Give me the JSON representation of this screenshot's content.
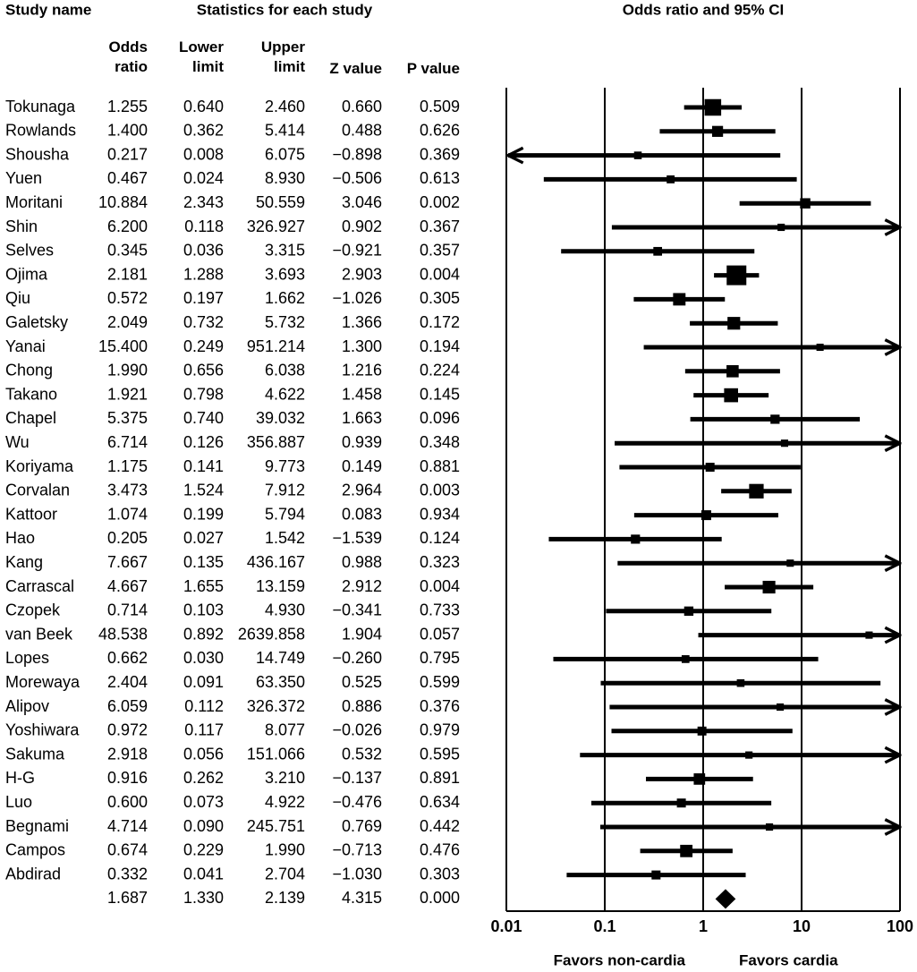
{
  "chart_data": {
    "type": "forest",
    "study_header": "Study name",
    "stats_header": "Statistics for each study",
    "title": "Odds ratio and 95% CI",
    "studies": [
      "Tokunaga",
      "Rowlands",
      "Shousha",
      "Yuen",
      "Moritani",
      "Shin",
      "Selves",
      "Ojima",
      "Qiu",
      "Galetsky",
      "Yanai",
      "Chong",
      "Takano",
      "Chapel",
      "Wu",
      "Koriyama",
      "Corvalan",
      "Kattoor",
      "Hao",
      "Kang",
      "Carrascal",
      "Czopek",
      "van Beek",
      "Lopes",
      "Morewaya",
      "Alipov",
      "Yoshiwara",
      "Sakuma",
      "H-G",
      "Luo",
      "Begnami",
      "Campos",
      "Abdirad",
      null
    ],
    "columns": [
      {
        "name": "Odds ratio",
        "values": [
          1.255,
          1.4,
          0.217,
          0.467,
          10.884,
          6.2,
          0.345,
          2.181,
          0.572,
          2.049,
          15.4,
          1.99,
          1.921,
          5.375,
          6.714,
          1.175,
          3.473,
          1.074,
          0.205,
          7.667,
          4.667,
          0.714,
          48.538,
          0.662,
          2.404,
          6.059,
          0.972,
          2.918,
          0.916,
          0.6,
          4.714,
          0.674,
          0.332,
          1.687
        ],
        "value_labels": [
          "1.255",
          "1.400",
          "0.217",
          "0.467",
          "10.884",
          "6.200",
          "0.345",
          "2.181",
          "0.572",
          "2.049",
          "15.400",
          "1.990",
          "1.921",
          "5.375",
          "6.714",
          "1.175",
          "3.473",
          "1.074",
          "0.205",
          "7.667",
          "4.667",
          "0.714",
          "48.538",
          "0.662",
          "2.404",
          "6.059",
          "0.972",
          "2.918",
          "0.916",
          "0.600",
          "4.714",
          "0.674",
          "0.332",
          "1.687"
        ]
      },
      {
        "name": "Lower limit",
        "values": [
          0.64,
          0.362,
          0.008,
          0.024,
          2.343,
          0.118,
          0.036,
          1.288,
          0.197,
          0.732,
          0.249,
          0.656,
          0.798,
          0.74,
          0.126,
          0.141,
          1.524,
          0.199,
          0.027,
          0.135,
          1.655,
          0.103,
          0.892,
          0.03,
          0.091,
          0.112,
          0.117,
          0.056,
          0.262,
          0.073,
          0.09,
          0.229,
          0.041,
          1.33
        ],
        "value_labels": [
          "0.640",
          "0.362",
          "0.008",
          "0.024",
          "2.343",
          "0.118",
          "0.036",
          "1.288",
          "0.197",
          "0.732",
          "0.249",
          "0.656",
          "0.798",
          "0.740",
          "0.126",
          "0.141",
          "1.524",
          "0.199",
          "0.027",
          "0.135",
          "1.655",
          "0.103",
          "0.892",
          "0.030",
          "0.091",
          "0.112",
          "0.117",
          "0.056",
          "0.262",
          "0.073",
          "0.090",
          "0.229",
          "0.041",
          "1.330"
        ]
      },
      {
        "name": "Upper limit",
        "values": [
          2.46,
          5.414,
          6.075,
          8.93,
          50.559,
          326.927,
          3.315,
          3.693,
          1.662,
          5.732,
          951.214,
          6.038,
          4.622,
          39.032,
          356.887,
          9.773,
          7.912,
          5.794,
          1.542,
          436.167,
          13.159,
          4.93,
          2639.858,
          14.749,
          63.35,
          326.372,
          8.077,
          151.066,
          3.21,
          4.922,
          245.751,
          1.99,
          2.704,
          2.139
        ],
        "value_labels": [
          "2.460",
          "5.414",
          "6.075",
          "8.930",
          "50.559",
          "326.927",
          "3.315",
          "3.693",
          "1.662",
          "5.732",
          "951.214",
          "6.038",
          "4.622",
          "39.032",
          "356.887",
          "9.773",
          "7.912",
          "5.794",
          "1.542",
          "436.167",
          "13.159",
          "4.930",
          "2639.858",
          "14.749",
          "63.350",
          "326.372",
          "8.077",
          "151.066",
          "3.210",
          "4.922",
          "245.751",
          "1.990",
          "2.704",
          "2.139"
        ]
      },
      {
        "name": "Z value",
        "values": [
          0.66,
          0.488,
          -0.898,
          -0.506,
          3.046,
          0.902,
          -0.921,
          2.903,
          -1.026,
          1.366,
          1.3,
          1.216,
          1.458,
          1.663,
          0.939,
          0.149,
          2.964,
          0.083,
          -1.539,
          0.988,
          2.912,
          -0.341,
          1.904,
          -0.26,
          0.525,
          0.886,
          -0.026,
          0.532,
          -0.137,
          -0.476,
          0.769,
          -0.713,
          -1.03,
          4.315
        ],
        "value_labels": [
          "0.660",
          "0.488",
          "−0.898",
          "−0.506",
          "3.046",
          "0.902",
          "−0.921",
          "2.903",
          "−1.026",
          "1.366",
          "1.300",
          "1.216",
          "1.458",
          "1.663",
          "0.939",
          "0.149",
          "2.964",
          "0.083",
          "−1.539",
          "0.988",
          "2.912",
          "−0.341",
          "1.904",
          "−0.260",
          "0.525",
          "0.886",
          "−0.026",
          "0.532",
          "−0.137",
          "−0.476",
          "0.769",
          "−0.713",
          "−1.030",
          "4.315"
        ]
      },
      {
        "name": "P value",
        "values": [
          0.509,
          0.626,
          0.369,
          0.613,
          0.002,
          0.367,
          0.357,
          0.004,
          0.305,
          0.172,
          0.194,
          0.224,
          0.145,
          0.096,
          0.348,
          0.881,
          0.003,
          0.934,
          0.124,
          0.323,
          0.004,
          0.733,
          0.057,
          0.795,
          0.599,
          0.376,
          0.979,
          0.595,
          0.891,
          0.634,
          0.442,
          0.476,
          0.303,
          0
        ],
        "value_labels": [
          "0.509",
          "0.626",
          "0.369",
          "0.613",
          "0.002",
          "0.367",
          "0.357",
          "0.004",
          "0.305",
          "0.172",
          "0.194",
          "0.224",
          "0.145",
          "0.096",
          "0.348",
          "0.881",
          "0.003",
          "0.934",
          "0.124",
          "0.323",
          "0.004",
          "0.733",
          "0.057",
          "0.795",
          "0.599",
          "0.376",
          "0.979",
          "0.595",
          "0.891",
          "0.634",
          "0.442",
          "0.476",
          "0.303",
          "0.000"
        ]
      }
    ],
    "xlim": [
      0.01,
      100
    ],
    "xticks": [
      0.01,
      0.1,
      1,
      10,
      100
    ],
    "log_x": true,
    "grid": true,
    "color": "#000000",
    "x_label_left": "Favors non-cardia",
    "x_label_right": "Favors cardia"
  }
}
